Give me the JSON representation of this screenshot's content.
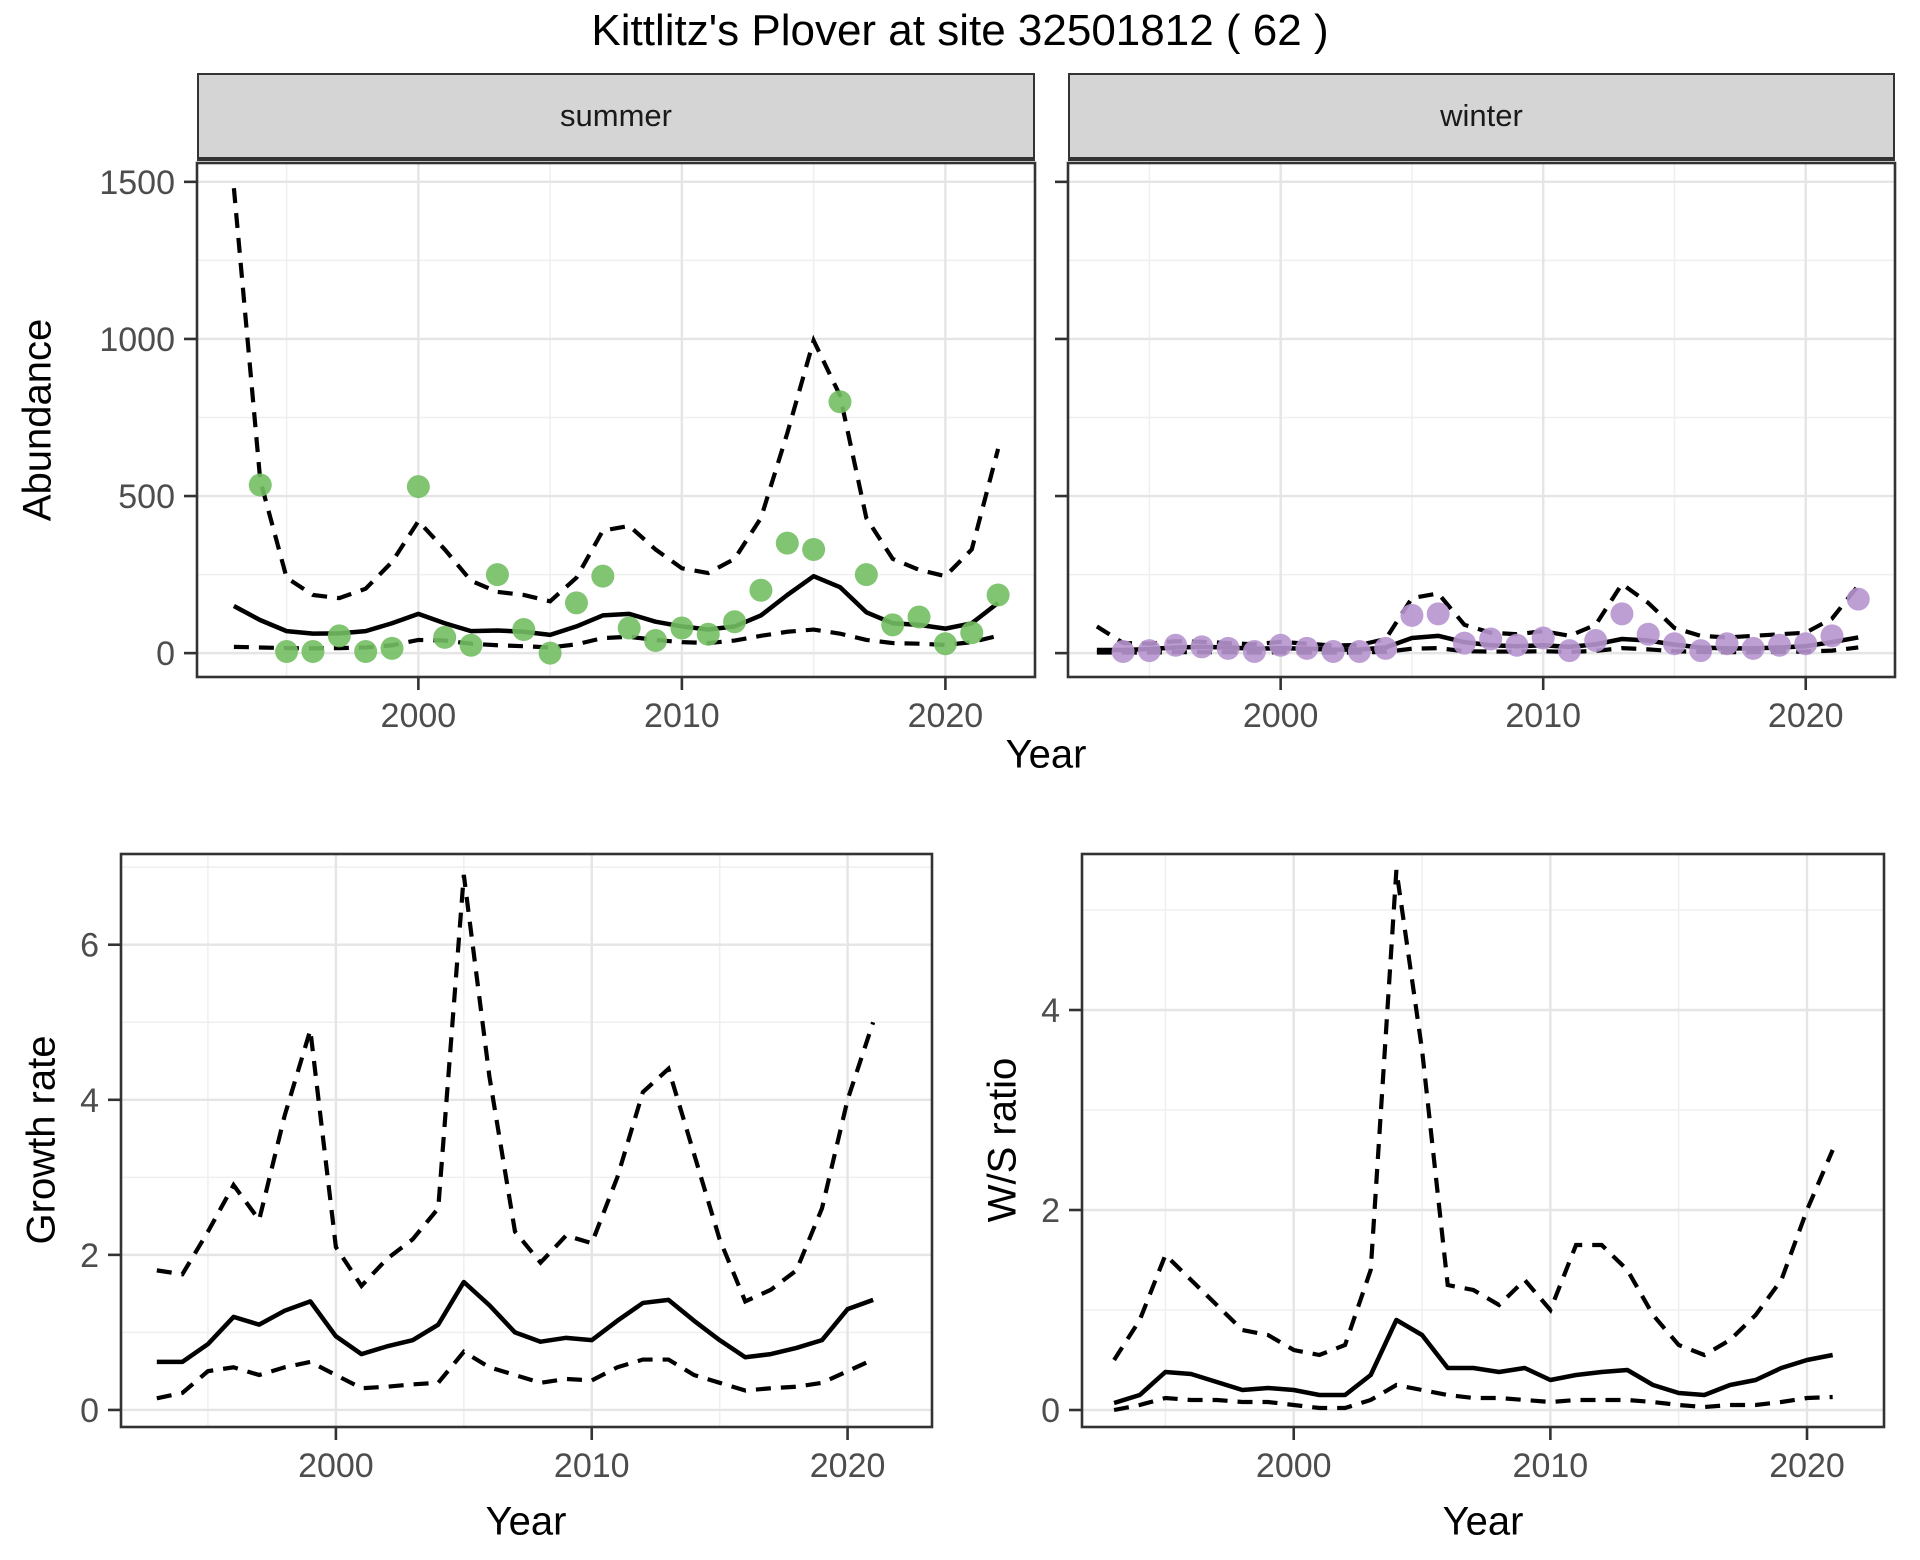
{
  "title": "Kittlitz's Plover at site 32501812 ( 62 )",
  "axes": {
    "abundance_label": "Abundance",
    "growth_label": "Growth rate",
    "ws_label": "W/S ratio",
    "year_label_top": "Year",
    "year_label_growth": "Year",
    "year_label_ws": "Year"
  },
  "colors": {
    "summer_point": "#73bf63",
    "winter_point": "#b795ce",
    "line": "#000000",
    "strip_bg": "#d5d5d5",
    "grid_major": "#e5e5e5",
    "grid_minor": "#efefef",
    "axis": "#333333",
    "tick_text": "#4d4d4d"
  },
  "chart_data": [
    {
      "id": "abundance-summer",
      "type": "scatter",
      "facet_label": "summer",
      "xlabel": "Year",
      "ylabel": "Abundance",
      "xlim": [
        1991.6,
        2023.4
      ],
      "ylim": [
        -76,
        1560
      ],
      "xticks": [
        2000,
        2010,
        2020
      ],
      "xminor": [
        1995,
        2005,
        2015
      ],
      "yticks": [
        0,
        500,
        1000,
        1500
      ],
      "yminor": [
        250,
        750,
        1250
      ],
      "show_y_labels": true,
      "point_color": "#73bf63",
      "years": [
        1993,
        1994,
        1995,
        1996,
        1997,
        1998,
        1999,
        2000,
        2001,
        2002,
        2003,
        2004,
        2005,
        2006,
        2007,
        2008,
        2009,
        2010,
        2011,
        2012,
        2013,
        2014,
        2015,
        2016,
        2017,
        2018,
        2019,
        2020,
        2021,
        2022
      ],
      "mean": [
        150,
        105,
        70,
        62,
        63,
        70,
        95,
        125,
        95,
        70,
        72,
        68,
        58,
        85,
        120,
        125,
        100,
        85,
        75,
        85,
        120,
        185,
        245,
        210,
        130,
        95,
        90,
        78,
        95,
        160
      ],
      "upper": [
        1480,
        550,
        240,
        185,
        175,
        205,
        290,
        420,
        330,
        230,
        195,
        185,
        165,
        240,
        390,
        405,
        330,
        270,
        255,
        300,
        430,
        700,
        995,
        820,
        430,
        300,
        265,
        245,
        330,
        650
      ],
      "lower": [
        20,
        18,
        16,
        15,
        16,
        18,
        25,
        42,
        40,
        30,
        25,
        22,
        18,
        28,
        48,
        52,
        42,
        35,
        32,
        40,
        55,
        68,
        75,
        62,
        42,
        32,
        30,
        26,
        35,
        55
      ],
      "points": [
        [
          1994,
          535
        ],
        [
          1995,
          5
        ],
        [
          1996,
          5
        ],
        [
          1997,
          55
        ],
        [
          1998,
          5
        ],
        [
          1999,
          15
        ],
        [
          2000,
          530
        ],
        [
          2001,
          50
        ],
        [
          2002,
          25
        ],
        [
          2003,
          250
        ],
        [
          2004,
          75
        ],
        [
          2005,
          0
        ],
        [
          2006,
          160
        ],
        [
          2007,
          245
        ],
        [
          2008,
          80
        ],
        [
          2009,
          40
        ],
        [
          2010,
          80
        ],
        [
          2011,
          60
        ],
        [
          2012,
          100
        ],
        [
          2013,
          200
        ],
        [
          2014,
          350
        ],
        [
          2015,
          330
        ],
        [
          2016,
          800
        ],
        [
          2017,
          250
        ],
        [
          2018,
          90
        ],
        [
          2019,
          115
        ],
        [
          2020,
          30
        ],
        [
          2021,
          65
        ],
        [
          2022,
          185
        ]
      ]
    },
    {
      "id": "abundance-winter",
      "type": "scatter",
      "facet_label": "winter",
      "xlabel": "Year",
      "ylabel": "Abundance",
      "xlim": [
        1991.9,
        2023.4
      ],
      "ylim": [
        -76,
        1560
      ],
      "xticks": [
        2000,
        2010,
        2020
      ],
      "xminor": [
        1995,
        2005,
        2015
      ],
      "yticks": [
        0,
        500,
        1000,
        1500
      ],
      "yminor": [
        250,
        750,
        1250
      ],
      "show_y_labels": false,
      "point_color": "#b795ce",
      "years": [
        1993,
        1994,
        1995,
        1996,
        1997,
        1998,
        1999,
        2000,
        2001,
        2002,
        2003,
        2004,
        2005,
        2006,
        2007,
        2008,
        2009,
        2010,
        2011,
        2012,
        2013,
        2014,
        2015,
        2016,
        2017,
        2018,
        2019,
        2020,
        2021,
        2022
      ],
      "mean": [
        10,
        10,
        13,
        18,
        20,
        18,
        14,
        16,
        14,
        11,
        11,
        18,
        48,
        55,
        35,
        25,
        22,
        25,
        20,
        28,
        45,
        40,
        27,
        18,
        15,
        15,
        18,
        22,
        35,
        50
      ],
      "upper": [
        85,
        32,
        30,
        38,
        36,
        32,
        28,
        36,
        30,
        24,
        26,
        45,
        175,
        190,
        90,
        65,
        60,
        70,
        55,
        90,
        220,
        160,
        80,
        55,
        50,
        55,
        60,
        65,
        110,
        215
      ],
      "lower": [
        2,
        2,
        2,
        3,
        3,
        3,
        2,
        3,
        2,
        2,
        2,
        4,
        14,
        16,
        6,
        5,
        5,
        6,
        4,
        7,
        16,
        12,
        6,
        4,
        3,
        3,
        4,
        5,
        8,
        18
      ],
      "points": [
        [
          1994,
          5
        ],
        [
          1995,
          8
        ],
        [
          1996,
          25
        ],
        [
          1997,
          20
        ],
        [
          1998,
          15
        ],
        [
          1999,
          5
        ],
        [
          2000,
          25
        ],
        [
          2001,
          15
        ],
        [
          2002,
          5
        ],
        [
          2003,
          5
        ],
        [
          2004,
          15
        ],
        [
          2005,
          120
        ],
        [
          2006,
          125
        ],
        [
          2007,
          32
        ],
        [
          2008,
          45
        ],
        [
          2009,
          25
        ],
        [
          2010,
          48
        ],
        [
          2011,
          8
        ],
        [
          2012,
          40
        ],
        [
          2013,
          125
        ],
        [
          2014,
          60
        ],
        [
          2015,
          30
        ],
        [
          2016,
          8
        ],
        [
          2017,
          30
        ],
        [
          2018,
          15
        ],
        [
          2019,
          25
        ],
        [
          2020,
          30
        ],
        [
          2021,
          55
        ],
        [
          2022,
          172
        ]
      ]
    },
    {
      "id": "growth-rate",
      "type": "line",
      "facet_label": "",
      "xlabel": "Year",
      "ylabel": "Growth rate",
      "xlim": [
        1991.6,
        2023.3
      ],
      "ylim": [
        -0.22,
        7.17
      ],
      "xticks": [
        2000,
        2010,
        2020
      ],
      "xminor": [
        1995,
        2005,
        2015
      ],
      "yticks": [
        0,
        2,
        4,
        6
      ],
      "yminor": [
        1,
        3,
        5,
        7
      ],
      "show_y_labels": true,
      "point_color": "",
      "years": [
        1993,
        1994,
        1995,
        1996,
        1997,
        1998,
        1999,
        2000,
        2001,
        2002,
        2003,
        2004,
        2005,
        2006,
        2007,
        2008,
        2009,
        2010,
        2011,
        2012,
        2013,
        2014,
        2015,
        2016,
        2017,
        2018,
        2019,
        2020,
        2021
      ],
      "mean": [
        0.62,
        0.62,
        0.85,
        1.2,
        1.1,
        1.28,
        1.4,
        0.95,
        0.72,
        0.82,
        0.9,
        1.1,
        1.65,
        1.35,
        1.0,
        0.88,
        0.93,
        0.9,
        1.15,
        1.38,
        1.42,
        1.15,
        0.9,
        0.68,
        0.72,
        0.8,
        0.9,
        1.3,
        1.42
      ],
      "upper": [
        1.8,
        1.75,
        2.3,
        2.9,
        2.45,
        3.8,
        4.9,
        2.1,
        1.6,
        1.95,
        2.2,
        2.6,
        6.9,
        4.3,
        2.3,
        1.9,
        2.25,
        2.15,
        3.0,
        4.1,
        4.4,
        3.3,
        2.2,
        1.4,
        1.55,
        1.8,
        2.6,
        4.0,
        5.0
      ],
      "lower": [
        0.15,
        0.22,
        0.5,
        0.55,
        0.45,
        0.55,
        0.62,
        0.45,
        0.28,
        0.3,
        0.33,
        0.35,
        0.75,
        0.55,
        0.45,
        0.35,
        0.4,
        0.38,
        0.55,
        0.65,
        0.65,
        0.45,
        0.35,
        0.25,
        0.28,
        0.3,
        0.35,
        0.5,
        0.65
      ],
      "points": []
    },
    {
      "id": "ws-ratio",
      "type": "line",
      "facet_label": "",
      "xlabel": "Year",
      "ylabel": "W/S ratio",
      "xlim": [
        1991.75,
        2023.0
      ],
      "ylim": [
        -0.17,
        5.56
      ],
      "xticks": [
        2000,
        2010,
        2020
      ],
      "xminor": [
        1995,
        2005,
        2015
      ],
      "yticks": [
        0,
        2,
        4
      ],
      "yminor": [
        1,
        3,
        5
      ],
      "show_y_labels": true,
      "point_color": "",
      "years": [
        1993,
        1994,
        1995,
        1996,
        1997,
        1998,
        1999,
        2000,
        2001,
        2002,
        2003,
        2004,
        2005,
        2006,
        2007,
        2008,
        2009,
        2010,
        2011,
        2012,
        2013,
        2014,
        2015,
        2016,
        2017,
        2018,
        2019,
        2020,
        2021
      ],
      "mean": [
        0.07,
        0.15,
        0.38,
        0.36,
        0.28,
        0.2,
        0.22,
        0.2,
        0.15,
        0.15,
        0.35,
        0.9,
        0.75,
        0.42,
        0.42,
        0.38,
        0.42,
        0.3,
        0.35,
        0.38,
        0.4,
        0.25,
        0.17,
        0.15,
        0.25,
        0.3,
        0.42,
        0.5,
        0.55
      ],
      "upper": [
        0.5,
        0.9,
        1.55,
        1.3,
        1.05,
        0.8,
        0.75,
        0.6,
        0.55,
        0.65,
        1.4,
        5.4,
        3.6,
        1.25,
        1.2,
        1.05,
        1.3,
        1.0,
        1.65,
        1.65,
        1.4,
        0.95,
        0.65,
        0.55,
        0.7,
        0.95,
        1.3,
        2.0,
        2.6
      ],
      "lower": [
        0.0,
        0.05,
        0.12,
        0.1,
        0.1,
        0.08,
        0.08,
        0.05,
        0.02,
        0.02,
        0.1,
        0.25,
        0.2,
        0.15,
        0.12,
        0.12,
        0.1,
        0.08,
        0.1,
        0.1,
        0.1,
        0.08,
        0.05,
        0.03,
        0.05,
        0.05,
        0.08,
        0.12,
        0.13
      ],
      "points": []
    }
  ]
}
